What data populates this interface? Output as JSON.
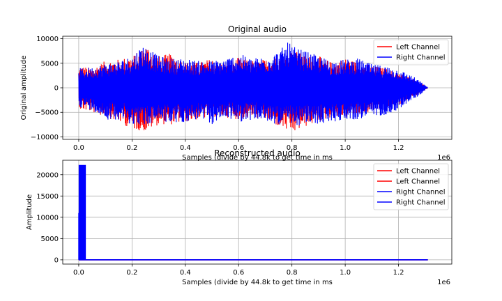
{
  "chart_data": [
    {
      "type": "line",
      "title": "Original audio",
      "xlabel": "Samples (divide by 44.8k to get time in ms",
      "ylabel": "Original amplitude",
      "x_scale_label": "1e6",
      "xlim": [
        -0.06,
        1.4
      ],
      "ylim": [
        -10500,
        10500
      ],
      "x_ticks": [
        0.0,
        0.2,
        0.4,
        0.6,
        0.8,
        1.0,
        1.2
      ],
      "x_tick_labels": [
        "0.0",
        "0.2",
        "0.4",
        "0.6",
        "0.8",
        "1.0",
        "1.2"
      ],
      "y_ticks": [
        -10000,
        -5000,
        0,
        5000,
        10000
      ],
      "y_tick_labels": [
        "−10000",
        "−5000",
        "0",
        "5000",
        "10000"
      ],
      "grid": true,
      "legend_position": "top-right",
      "series": [
        {
          "name": "Left Channel",
          "color": "#ff0000",
          "envelope": {
            "x": [
              0.0,
              0.005,
              0.05,
              0.1,
              0.15,
              0.2,
              0.24,
              0.25,
              0.3,
              0.35,
              0.4,
              0.45,
              0.5,
              0.55,
              0.6,
              0.65,
              0.7,
              0.75,
              0.79,
              0.8,
              0.85,
              0.9,
              0.95,
              1.0,
              1.05,
              1.1,
              1.15,
              1.2,
              1.25,
              1.28,
              1.3,
              1.31
            ],
            "max": [
              3500,
              4500,
              4000,
              5500,
              5800,
              6500,
              8000,
              9000,
              6500,
              7000,
              5200,
              5200,
              6000,
              5000,
              6200,
              5600,
              5800,
              6500,
              7200,
              8000,
              6500,
              6500,
              5200,
              6000,
              5200,
              4500,
              4000,
              3000,
              2000,
              1200,
              400,
              0
            ],
            "min": [
              -3200,
              -4500,
              -5000,
              -6000,
              -7000,
              -8500,
              -8800,
              -9000,
              -7500,
              -7500,
              -7000,
              -6500,
              -6000,
              -6000,
              -6500,
              -6000,
              -6500,
              -8000,
              -9200,
              -9500,
              -8000,
              -7000,
              -6000,
              -6000,
              -5500,
              -5000,
              -4500,
              -3500,
              -2000,
              -1200,
              -400,
              0
            ]
          }
        },
        {
          "name": "Right Channel",
          "color": "#0000ff",
          "envelope": {
            "x": [
              0.0,
              0.005,
              0.05,
              0.1,
              0.15,
              0.2,
              0.24,
              0.25,
              0.3,
              0.35,
              0.4,
              0.45,
              0.5,
              0.55,
              0.6,
              0.65,
              0.7,
              0.75,
              0.79,
              0.8,
              0.85,
              0.9,
              0.95,
              1.0,
              1.05,
              1.1,
              1.15,
              1.2,
              1.25,
              1.28,
              1.3,
              1.31
            ],
            "max": [
              3200,
              4000,
              4200,
              5000,
              5500,
              6500,
              9000,
              8500,
              6500,
              6000,
              6000,
              5500,
              5500,
              6000,
              7000,
              6000,
              6500,
              7500,
              9500,
              8500,
              7500,
              6500,
              5500,
              5800,
              6000,
              4800,
              4500,
              3800,
              2500,
              1400,
              500,
              0
            ],
            "min": [
              -3000,
              -4000,
              -4500,
              -6500,
              -6500,
              -7500,
              -7500,
              -8000,
              -6500,
              -7500,
              -7000,
              -6500,
              -7500,
              -6000,
              -7000,
              -6500,
              -7000,
              -7500,
              -8000,
              -8000,
              -7500,
              -7500,
              -7000,
              -6500,
              -6500,
              -6000,
              -5500,
              -4500,
              -2500,
              -1500,
              -500,
              0
            ]
          }
        }
      ]
    },
    {
      "type": "line",
      "title": "Reconstructed audio",
      "xlabel": "Samples (divide by 44.8k to get time in ms",
      "ylabel": "Amplitude",
      "x_scale_label": "1e6",
      "xlim": [
        -0.06,
        1.4
      ],
      "ylim": [
        -1000,
        23400
      ],
      "x_ticks": [
        0.0,
        0.2,
        0.4,
        0.6,
        0.8,
        1.0,
        1.2
      ],
      "x_tick_labels": [
        "0.0",
        "0.2",
        "0.4",
        "0.6",
        "0.8",
        "1.0",
        "1.2"
      ],
      "y_ticks": [
        0,
        5000,
        10000,
        15000,
        20000
      ],
      "y_tick_labels": [
        "0",
        "5000",
        "10000",
        "15000",
        "20000"
      ],
      "grid": true,
      "legend_position": "top-right",
      "series": [
        {
          "name": "Left Channel",
          "color": "#ff0000",
          "x": [
            0.0,
            1.31
          ],
          "y": [
            0,
            0
          ]
        },
        {
          "name": "Left Channel",
          "color": "#ff0000",
          "x": [
            0.0,
            1.31
          ],
          "y": [
            0,
            0
          ]
        },
        {
          "name": "Right Channel",
          "color": "#0000ff",
          "x": [
            0.0,
            1.31
          ],
          "y": [
            0,
            0
          ]
        },
        {
          "name": "Right Channel",
          "color": "#0000ff",
          "spikes": {
            "x_start": 0.0,
            "x_end": 0.025,
            "peak": 22300,
            "first_peak": 11000
          }
        }
      ]
    }
  ]
}
